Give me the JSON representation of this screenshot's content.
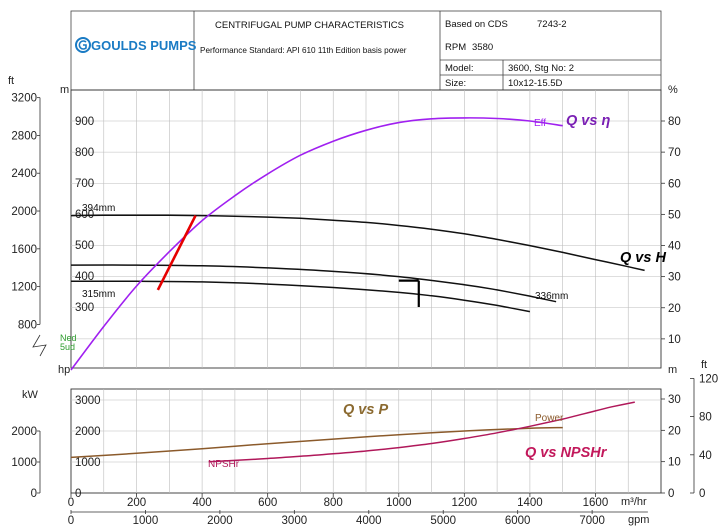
{
  "header": {
    "logo_text": "GOULDS PUMPS",
    "title": "CENTRIFUGAL PUMP CHARACTERISTICS",
    "standard": "Performance Standard: API 610 11th Edition basis power",
    "based_on_label": "Based on CDS",
    "based_on_value": "7243-2",
    "rpm_label": "RPM",
    "rpm_value": "3580",
    "model_label": "Model:",
    "model_value": "3600, Stg No: 2",
    "size_label": "Size:",
    "size_value": "10x12-15.5D"
  },
  "colors": {
    "efficiency": "#a020f0",
    "head": "#111111",
    "power": "#8b5a2b",
    "npshr": "#b0185a",
    "bep_marker": "#e60000",
    "grid": "#bdbdbd",
    "anno_eff": "#7a1fb4",
    "anno_head": "#000000",
    "anno_power": "#8b6a30",
    "anno_npshr": "#c2185b"
  },
  "chart_data": {
    "type": "line",
    "x_flow_m3h": {
      "unit": "m³/hr",
      "range": [
        0,
        1800
      ],
      "ticks": [
        0,
        200,
        400,
        600,
        800,
        1000,
        1200,
        1400,
        1600
      ],
      "tick_labels": [
        "0",
        "200",
        "400",
        "600",
        "800",
        "1000",
        "1200",
        "1400",
        "1600"
      ]
    },
    "x_flow_gpm": {
      "unit": "gpm",
      "ticks": [
        0,
        1000,
        2000,
        3000,
        4000,
        5000,
        6000,
        7000
      ],
      "tick_labels": [
        "0",
        "1000",
        "2000",
        "3000",
        "4000",
        "5000",
        "6000",
        "7000"
      ]
    },
    "head_axis": {
      "unit_m": "m",
      "unit_ft": "ft",
      "m_ticks": [
        300,
        400,
        500,
        600,
        700,
        800,
        900
      ],
      "m_tick_labels": [
        "300",
        "400",
        "500",
        "600",
        "700",
        "800",
        "900"
      ],
      "ft_ticks": [
        800,
        1200,
        1600,
        2000,
        2400,
        2800,
        3200
      ],
      "ft_tick_labels": [
        "800",
        "1200",
        "1600",
        "2000",
        "2400",
        "2800",
        "3200"
      ]
    },
    "efficiency_axis": {
      "unit": "%",
      "ticks": [
        10,
        20,
        30,
        40,
        50,
        60,
        70,
        80
      ],
      "tick_labels": [
        "10",
        "20",
        "30",
        "40",
        "50",
        "60",
        "70",
        "80"
      ]
    },
    "power_axis": {
      "unit": "kW",
      "unit2": "hp",
      "kw_ticks": [
        0,
        1000,
        2000,
        3000
      ],
      "kw_tick_labels": [
        "0",
        "1000",
        "2000",
        "3000"
      ],
      "hp_ticks": [
        0,
        1000,
        2000
      ],
      "hp_tick_labels": [
        "0",
        "1000",
        "2000"
      ]
    },
    "npsh_axis": {
      "unit_m": "m",
      "unit_ft": "ft",
      "m_ticks": [
        0,
        10,
        20,
        30
      ],
      "m_tick_labels": [
        "0",
        "10",
        "20",
        "30"
      ],
      "ft_ticks": [
        0,
        40,
        80,
        120
      ],
      "ft_tick_labels": [
        "0",
        "40",
        "80",
        "120"
      ]
    },
    "series": [
      {
        "name": "394mm",
        "kind": "head",
        "x": [
          0,
          100,
          200,
          300,
          400,
          500,
          600,
          700,
          800,
          900,
          1000,
          1100,
          1200,
          1300,
          1400,
          1500,
          1600,
          1700,
          1750
        ],
        "y": [
          595,
          596,
          596,
          596,
          595,
          593,
          590,
          586,
          580,
          573,
          563,
          551,
          536,
          518,
          498,
          476,
          453,
          430,
          418
        ]
      },
      {
        "name": "336mm",
        "kind": "head",
        "x": [
          0,
          200,
          400,
          600,
          800,
          1000,
          1200,
          1300,
          1400,
          1480
        ],
        "y": [
          435,
          435,
          433,
          426,
          415,
          398,
          372,
          355,
          335,
          317
        ]
      },
      {
        "name": "315mm",
        "kind": "head",
        "x": [
          0,
          200,
          400,
          600,
          800,
          1000,
          1100,
          1200,
          1300,
          1400
        ],
        "y": [
          383,
          383,
          381,
          374,
          363,
          347,
          336,
          322,
          305,
          285
        ]
      },
      {
        "name": "Eff",
        "kind": "efficiency",
        "x": [
          0,
          100,
          200,
          300,
          400,
          500,
          600,
          700,
          800,
          900,
          1000,
          1100,
          1200,
          1300,
          1400,
          1500
        ],
        "y": [
          0,
          14,
          27,
          38,
          48,
          56,
          63,
          69,
          73.5,
          77,
          79.5,
          80.7,
          81,
          80.8,
          80,
          78.5
        ]
      },
      {
        "name": "Power",
        "kind": "power",
        "x": [
          0,
          200,
          400,
          600,
          800,
          1000,
          1200,
          1400,
          1500
        ],
        "y": [
          1150,
          1280,
          1430,
          1590,
          1740,
          1880,
          2000,
          2090,
          2110
        ]
      },
      {
        "name": "NPSHr",
        "kind": "npshr",
        "x": [
          420,
          500,
          600,
          700,
          800,
          900,
          1000,
          1100,
          1200,
          1300,
          1400,
          1500,
          1600,
          1650,
          1720
        ],
        "y": [
          10.0,
          10.4,
          11.0,
          11.7,
          12.5,
          13.4,
          14.5,
          15.8,
          17.4,
          19.2,
          21.3,
          23.6,
          26.2,
          27.5,
          29.0
        ]
      }
    ],
    "markers": {
      "min_flow_line": {
        "x": [
          265,
          380
        ],
        "y": [
          355,
          595
        ]
      },
      "rated_point": {
        "x": [
          1000,
          1100
        ],
        "y": [
          385,
          300
        ]
      }
    },
    "annotations": {
      "eff": "Q vs η",
      "head": "Q vs H",
      "power": "Q vs P",
      "npshr": "Q vs NPSHr"
    },
    "left_axis_misc": {
      "label_a": "Ned",
      "label_b": "5ud"
    }
  }
}
